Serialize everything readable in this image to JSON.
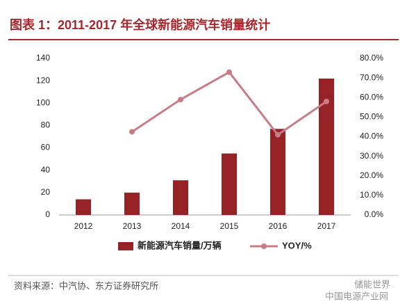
{
  "chart_data": {
    "type": "bar",
    "title": "图表 1：2011-2017 年全球新能源汽车销量统计",
    "categories": [
      "2012",
      "2013",
      "2014",
      "2015",
      "2016",
      "2017"
    ],
    "series": [
      {
        "name": "新能源汽车销量/万辆",
        "type": "bar",
        "color": "#962226",
        "values": [
          14,
          20,
          31,
          55,
          77,
          122
        ]
      },
      {
        "name": "YOY/%",
        "type": "line",
        "axis": "y2",
        "color": "#c97b86",
        "values": [
          null,
          42.5,
          59,
          73,
          41,
          58
        ]
      }
    ],
    "ylim": [
      0,
      140
    ],
    "yticks": [
      0,
      20,
      40,
      60,
      80,
      100,
      120,
      140
    ],
    "y2lim": [
      0,
      80
    ],
    "y2ticks": [
      {
        "value": 0,
        "label": "0.0%"
      },
      {
        "value": 10,
        "label": "10.0%"
      },
      {
        "value": 20,
        "label": "20.0%"
      },
      {
        "value": 30,
        "label": "30.0%"
      },
      {
        "value": 40,
        "label": "40.0%"
      },
      {
        "value": 50,
        "label": "50.0%"
      },
      {
        "value": 60,
        "label": "60.0%"
      },
      {
        "value": 70,
        "label": "70.0%"
      },
      {
        "value": 80,
        "label": "80.0%"
      }
    ],
    "grid": false,
    "legend": "bottom",
    "source": "资料来源：中汽协、东方证券研究所",
    "watermark": [
      "储能世界",
      "中国电源产业网"
    ]
  }
}
